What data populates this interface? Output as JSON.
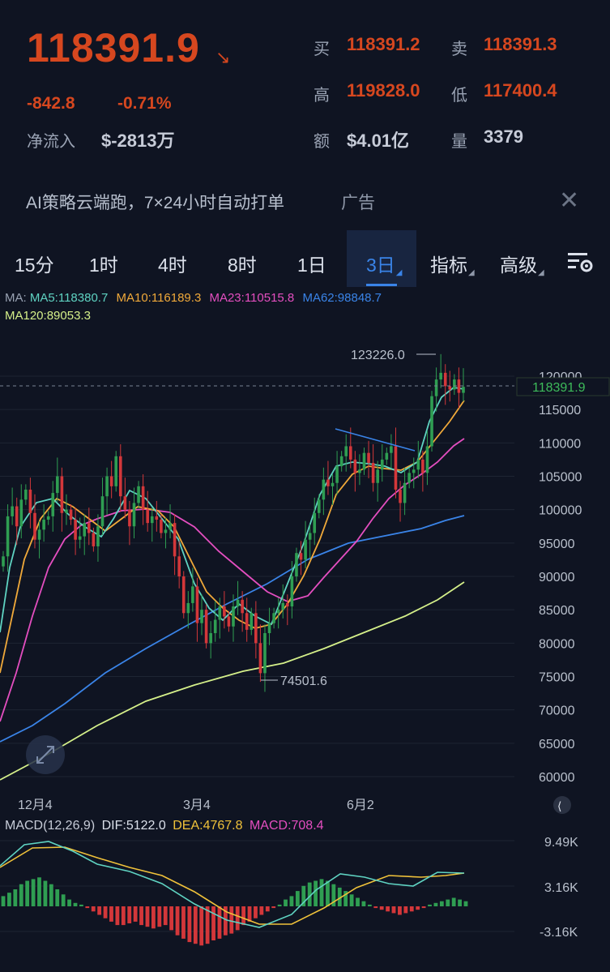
{
  "quote": {
    "last_price": "118391.9",
    "arrow": "↘",
    "change": "-842.8",
    "change_pct": "-0.71%",
    "net_inflow_label": "净流入",
    "net_inflow_value": "$-2813万",
    "bid_label": "买",
    "bid_value": "118391.2",
    "ask_label": "卖",
    "ask_value": "118391.3",
    "high_label": "高",
    "high_value": "119828.0",
    "low_label": "低",
    "low_value": "117400.4",
    "amount_label": "额",
    "amount_value": "$4.01亿",
    "volume_label": "量",
    "volume_value": "3379"
  },
  "ad": {
    "text": "AI策略云端跑，7×24小时自动打单",
    "tag": "广告",
    "close": "✕"
  },
  "tabs": [
    {
      "label": "15分"
    },
    {
      "label": "1时"
    },
    {
      "label": "4时"
    },
    {
      "label": "8时"
    },
    {
      "label": "1日"
    },
    {
      "label": "3日",
      "active": true
    },
    {
      "label": "指标"
    },
    {
      "label": "高级"
    }
  ],
  "ma_legend": {
    "ma5": "MA5:118380.7",
    "ma10": "MA10:116189.3",
    "ma23": "MA23:110515.8",
    "ma62": "MA62:98848.7",
    "ma120": "MA120:89053.3"
  },
  "colors": {
    "up": "#2f9e52",
    "down": "#d3373a",
    "ma5": "#5fd3c2",
    "ma10": "#f0a93a",
    "ma23": "#e44ec0",
    "ma62": "#3a84e8",
    "ma120": "#d5f08a",
    "dif": "#5fd3c2",
    "dea": "#f0c23a",
    "macd": "#e44ec0"
  },
  "chart_data": {
    "type": "candlestick",
    "yticks": [
      "120000",
      "115000",
      "110000",
      "105000",
      "100000",
      "95000",
      "90000",
      "85000",
      "80000",
      "75000",
      "70000",
      "65000",
      "60000"
    ],
    "xticks": [
      "12月4",
      "3月4",
      "6月2"
    ],
    "current_price_tag": "118391.9",
    "high_marker": "123226.0",
    "low_marker": "74501.6",
    "macd": {
      "title": "MACD(12,26,9)",
      "dif": "DIF:5122.0",
      "dea": "DEA:4767.8",
      "macd": "MACD:708.4",
      "yticks": [
        "9.49K",
        "3.16K",
        "-3.16K"
      ]
    }
  }
}
